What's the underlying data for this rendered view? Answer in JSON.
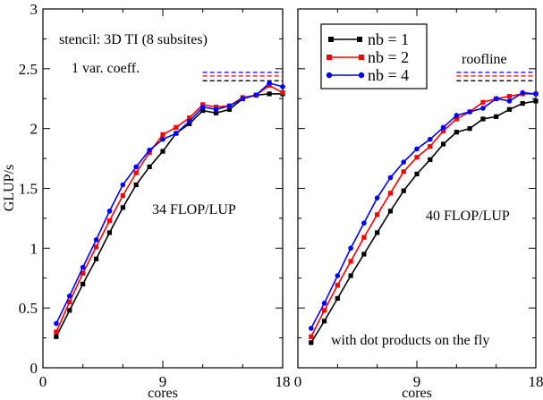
{
  "chart_data": [
    {
      "type": "line",
      "xlabel": "cores",
      "ylabel": "GLUP/s",
      "xlim": [
        0,
        18
      ],
      "ylim": [
        0,
        3
      ],
      "x_ticks": [
        "0",
        "9",
        "18"
      ],
      "y_ticks": [
        "0",
        "0.5",
        "1",
        "1.5",
        "2",
        "2.5",
        "3"
      ],
      "annotations": [
        "stencil: 3D TI (8 subsites)",
        "1 var. coeff.",
        "34 FLOP/LUP"
      ],
      "roofline": [
        2.47,
        2.44,
        2.4
      ],
      "x": [
        1,
        2,
        3,
        4,
        5,
        6,
        7,
        8,
        9,
        10,
        11,
        12,
        13,
        14,
        15,
        16,
        17,
        18
      ],
      "series": [
        {
          "name": "nb = 1",
          "color": "#000000",
          "marker": "square",
          "values": [
            0.26,
            0.48,
            0.7,
            0.91,
            1.13,
            1.34,
            1.53,
            1.68,
            1.81,
            1.96,
            2.04,
            2.15,
            2.13,
            2.16,
            2.25,
            2.28,
            2.29,
            2.29
          ]
        },
        {
          "name": "nb = 2",
          "color": "#ff0000",
          "marker": "square",
          "values": [
            0.3,
            0.55,
            0.79,
            1.01,
            1.23,
            1.44,
            1.63,
            1.8,
            1.95,
            2.01,
            2.09,
            2.2,
            2.18,
            2.19,
            2.26,
            2.28,
            2.36,
            2.3
          ]
        },
        {
          "name": "nb = 4",
          "color": "#0000ff",
          "marker": "circle",
          "values": [
            0.37,
            0.6,
            0.84,
            1.07,
            1.31,
            1.53,
            1.68,
            1.82,
            1.91,
            1.96,
            2.06,
            2.18,
            2.16,
            2.19,
            2.25,
            2.28,
            2.38,
            2.35
          ]
        }
      ]
    },
    {
      "type": "line",
      "xlabel": "cores",
      "ylabel": "",
      "xlim": [
        0,
        18
      ],
      "ylim": [
        0,
        3
      ],
      "x_ticks": [
        "0",
        "9",
        "18"
      ],
      "y_ticks": [],
      "annotations": [
        "roofline",
        "40 FLOP/LUP",
        "with dot products on the fly"
      ],
      "roofline": [
        2.47,
        2.44,
        2.4
      ],
      "x": [
        1,
        2,
        3,
        4,
        5,
        6,
        7,
        8,
        9,
        10,
        11,
        12,
        13,
        14,
        15,
        16,
        17,
        18
      ],
      "series": [
        {
          "name": "nb = 1",
          "color": "#000000",
          "marker": "square",
          "values": [
            0.21,
            0.39,
            0.58,
            0.77,
            0.95,
            1.13,
            1.31,
            1.48,
            1.62,
            1.74,
            1.87,
            1.97,
            2.0,
            2.08,
            2.1,
            2.16,
            2.21,
            2.23
          ]
        },
        {
          "name": "nb = 2",
          "color": "#ff0000",
          "marker": "square",
          "values": [
            0.26,
            0.48,
            0.69,
            0.89,
            1.09,
            1.28,
            1.46,
            1.64,
            1.76,
            1.85,
            1.98,
            2.08,
            2.14,
            2.22,
            2.25,
            2.27,
            2.29,
            2.29
          ]
        },
        {
          "name": "nb = 4",
          "color": "#0000ff",
          "marker": "circle",
          "values": [
            0.33,
            0.54,
            0.77,
            1.0,
            1.21,
            1.42,
            1.59,
            1.72,
            1.83,
            1.91,
            2.01,
            2.11,
            2.14,
            2.17,
            2.25,
            2.23,
            2.3,
            2.29
          ]
        }
      ]
    }
  ],
  "legend": {
    "placement": "top-left of right panel",
    "entries": [
      "nb = 1",
      "nb = 2",
      "nb = 4"
    ]
  }
}
